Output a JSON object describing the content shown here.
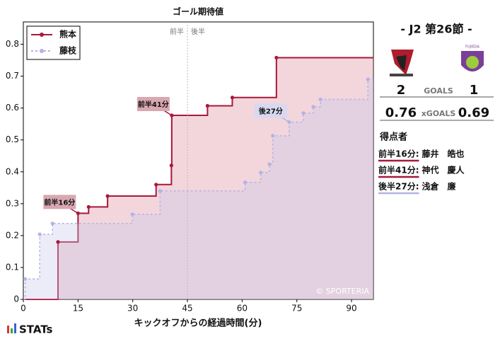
{
  "chart_data": {
    "type": "step",
    "title": "ゴール期待値",
    "x_label": "キックオフからの経過時間(分)",
    "xlim": [
      0,
      96
    ],
    "xticks": [
      0,
      15,
      30,
      45,
      60,
      75,
      90
    ],
    "ylim": [
      0,
      0.87
    ],
    "yticks": [
      0,
      0.1,
      0.2,
      0.3,
      0.4,
      0.5,
      0.6,
      0.7,
      0.8
    ],
    "halftime": 45,
    "halftime_labels": [
      "前半",
      "後半"
    ],
    "watermark": "© SPORTERIA",
    "legend": "upper left",
    "series": [
      {
        "name": "熊本",
        "color": "#a8183a",
        "fill": "#d9899b",
        "dash": false,
        "x": [
          9.5,
          15.0,
          17.9,
          23.1,
          36.4,
          40.6,
          40.7,
          50.5,
          57.3,
          69.4
        ],
        "values": [
          0.18,
          0.27,
          0.29,
          0.324,
          0.36,
          0.42,
          0.577,
          0.607,
          0.633,
          0.758
        ],
        "annotations": [
          null,
          "前半16分",
          null,
          null,
          null,
          null,
          "前半41分",
          null,
          null,
          null
        ]
      },
      {
        "name": "藤枝",
        "color": "#b3b3e6",
        "fill": "#c8c8ea",
        "dash": true,
        "x": [
          0.5,
          4.5,
          8.0,
          29.9,
          37.5,
          60.8,
          65.1,
          67.5,
          68.4,
          72.9,
          76.8,
          79.5,
          81.5,
          94.5
        ],
        "values": [
          0.064,
          0.204,
          0.238,
          0.267,
          0.34,
          0.367,
          0.398,
          0.424,
          0.513,
          0.556,
          0.584,
          0.604,
          0.627,
          0.69
        ],
        "annotations": [
          null,
          null,
          null,
          null,
          null,
          null,
          null,
          null,
          null,
          "後27分",
          null,
          null,
          null,
          null
        ]
      }
    ]
  },
  "match": {
    "round": "- J2 第26節 -",
    "home_goals": 2,
    "away_goals": 1,
    "goals_label": "GOALS",
    "home_xg": 0.76,
    "away_xg": 0.69,
    "xg_label": "xGOALS",
    "scorers_title": "得点者",
    "scorers": [
      {
        "time": "前半16分:",
        "name": "藤井　皓也",
        "color": "#a8183a"
      },
      {
        "time": "前半41分:",
        "name": "神代　慶人",
        "color": "#a8183a"
      },
      {
        "time": "後半27分:",
        "name": "浅倉　廉",
        "color": "#b3b3e6"
      }
    ]
  },
  "footer": {
    "brand": "STATs"
  }
}
